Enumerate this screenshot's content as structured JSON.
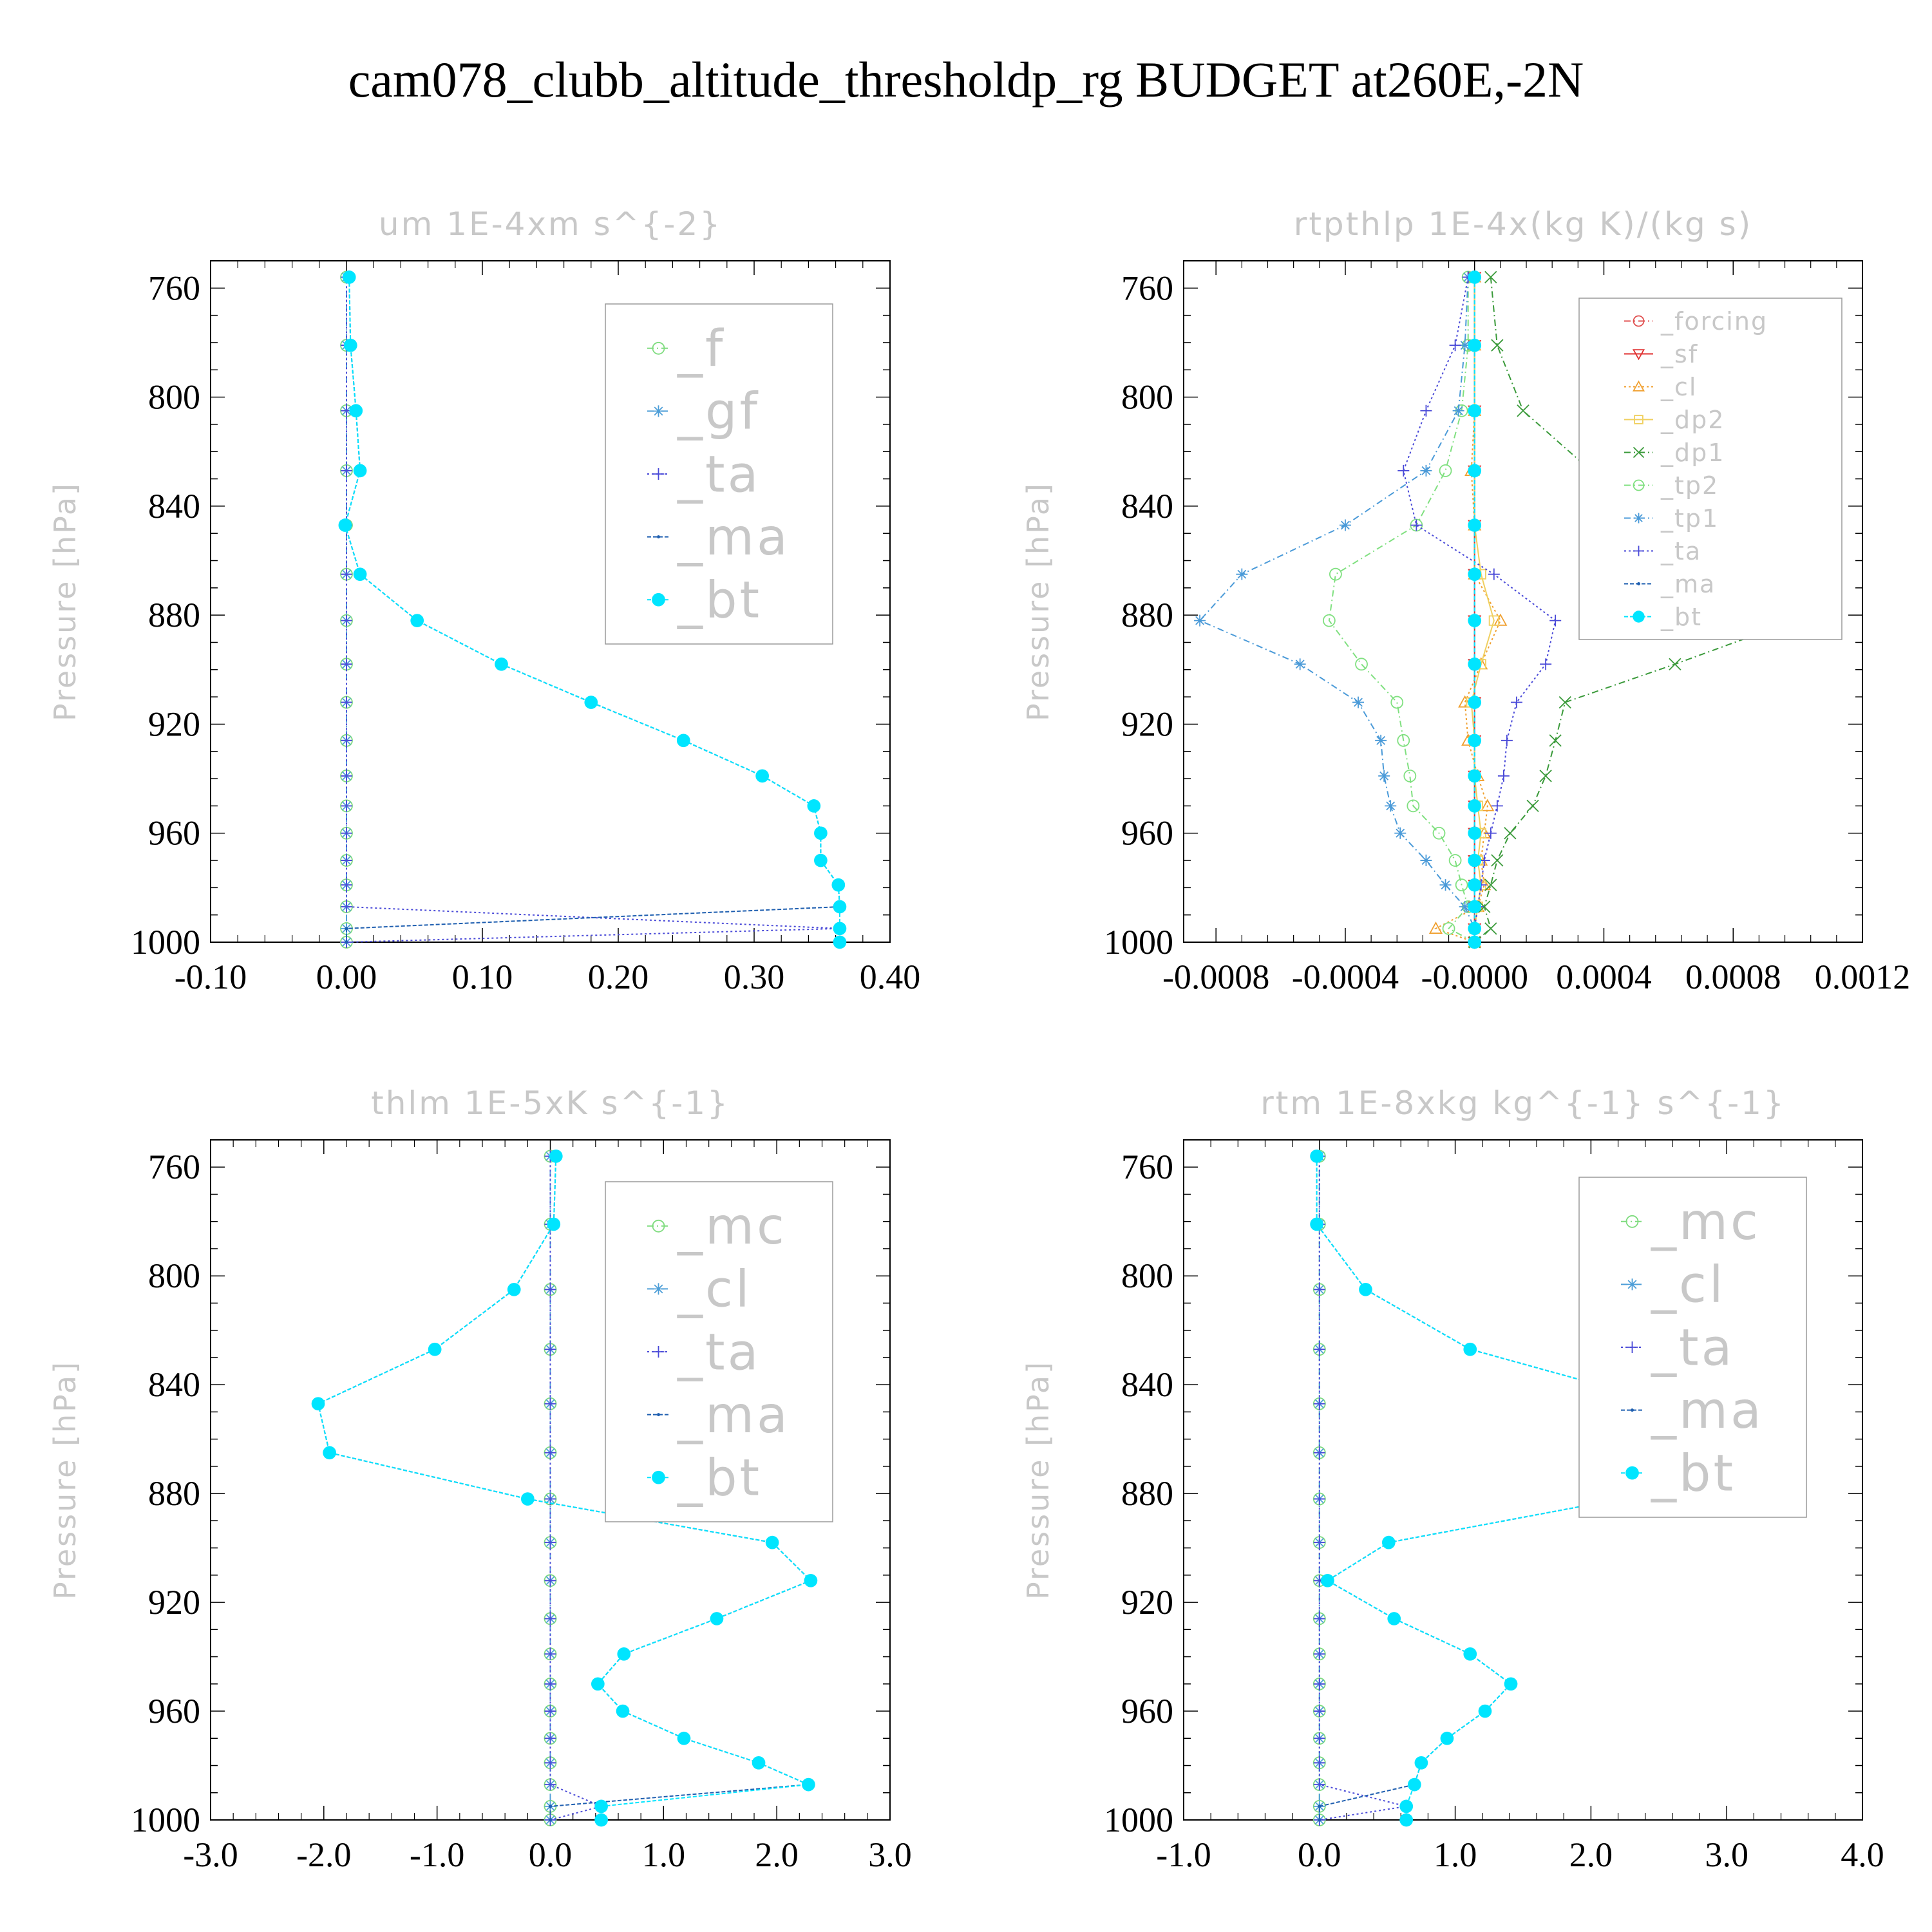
{
  "title": "cam078_clubb_altitude_thresholdp_rg  BUDGET at260E,-2N",
  "colors": {
    "frame": "#000000",
    "faint_text": "#c8c8c8",
    "f": "#7fdc7f",
    "gf": "#4f9fd8",
    "ta": "#4a4ad8",
    "ma": "#1f5fb0",
    "bt": "#00e5ff",
    "forcing": "#e05050",
    "sf": "#e03030",
    "cl_orange": "#f0a030",
    "dp2": "#f0d060",
    "dp1": "#3a9a3a",
    "tp2": "#80e080",
    "tp1": "#4a9ad8",
    "mc": "#7fdc7f",
    "cl_blue": "#4f9fd8"
  },
  "chart_data": [
    {
      "type": "line",
      "panel": "top-left",
      "title": "um  1E-4xm s^{-2}",
      "ylabel": "Pressure [hPa]",
      "ylim": [
        1000,
        750
      ],
      "xlim": [
        -0.1,
        0.4
      ],
      "xticks": [
        -0.1,
        0.0,
        0.1,
        0.2,
        0.3,
        0.4
      ],
      "xtick_labels": [
        "-0.10",
        "0.00",
        "0.10",
        "0.20",
        "0.30",
        "0.40"
      ],
      "yticks": [
        760,
        800,
        840,
        880,
        920,
        960,
        1000
      ],
      "ytick_labels": [
        "760",
        "800",
        "840",
        "880",
        "920",
        "960",
        "1000"
      ],
      "legend": "top-right",
      "levels": [
        756,
        781,
        805,
        827,
        847,
        865,
        882,
        898,
        912,
        926,
        939,
        950,
        960,
        970,
        979,
        987,
        995,
        1000
      ],
      "series": [
        {
          "name": "_f",
          "marker": "circle",
          "color_key": "f",
          "dash": "10,5,2,5",
          "values": [
            0,
            0,
            0,
            0,
            0,
            0,
            0,
            0,
            0,
            0,
            0,
            0,
            0,
            0,
            0,
            0,
            0,
            0
          ]
        },
        {
          "name": "_gf",
          "marker": "star",
          "color_key": "gf",
          "dash": "10,5,2,5",
          "values": [
            0,
            0,
            0,
            0,
            0,
            0,
            0,
            0,
            0,
            0,
            0,
            0,
            0,
            0,
            0,
            0,
            0,
            0
          ]
        },
        {
          "name": "_ta",
          "marker": "plus",
          "color_key": "ta",
          "dash": "3,4",
          "values": [
            0,
            0,
            0,
            0,
            0,
            0,
            0,
            0,
            0,
            0,
            0,
            0,
            0,
            0,
            0,
            0,
            0.363,
            0
          ]
        },
        {
          "name": "_ma",
          "marker": "dot",
          "color_key": "ma",
          "dash": "6,3",
          "values": [
            0.002,
            0.003,
            0.007,
            0.01,
            -0.001,
            0.01,
            0.052,
            0.114,
            0.18,
            0.248,
            0.306,
            0.344,
            0.349,
            0.349,
            0.362,
            0.363,
            0,
            0
          ]
        },
        {
          "name": "_bt",
          "marker": "filled-circle",
          "color_key": "bt",
          "dash": "6,3",
          "values": [
            0.002,
            0.003,
            0.007,
            0.01,
            -0.001,
            0.01,
            0.052,
            0.114,
            0.18,
            0.248,
            0.306,
            0.344,
            0.349,
            0.349,
            0.362,
            0.363,
            0.363,
            0.363
          ]
        }
      ]
    },
    {
      "type": "line",
      "panel": "top-right",
      "title": "rtpthlp  1E-4x(kg K)/(kg s)",
      "ylabel": "Pressure [hPa]",
      "ylim": [
        1000,
        750
      ],
      "xlim": [
        -0.0009,
        0.0012
      ],
      "xticks": [
        -0.0008,
        -0.0004,
        0.0,
        0.0004,
        0.0008,
        0.0012
      ],
      "xtick_labels": [
        "-0.0008",
        "-0.0004",
        "-0.0000",
        "0.0004",
        "0.0008",
        "0.0012"
      ],
      "yticks": [
        760,
        800,
        840,
        880,
        920,
        960,
        1000
      ],
      "ytick_labels": [
        "760",
        "800",
        "840",
        "880",
        "920",
        "960",
        "1000"
      ],
      "legend": "top-right",
      "levels": [
        756,
        781,
        805,
        827,
        847,
        865,
        882,
        898,
        912,
        926,
        939,
        950,
        960,
        970,
        979,
        987,
        995,
        1000
      ],
      "series": [
        {
          "name": "_forcing",
          "marker": "circle",
          "color_key": "forcing",
          "dash": "10,5,2,5",
          "values": [
            0,
            0,
            0,
            0,
            0,
            0,
            0,
            0,
            0,
            0,
            0,
            0,
            0,
            0,
            0,
            0,
            0,
            0
          ]
        },
        {
          "name": "_sf",
          "marker": "triangle-down",
          "color_key": "sf",
          "dash": "none",
          "values": [
            0,
            0,
            0,
            0,
            0,
            0,
            0,
            0,
            0,
            0,
            0,
            0,
            0,
            0,
            0,
            0,
            0,
            0
          ]
        },
        {
          "name": "_cl",
          "marker": "triangle-up",
          "color_key": "cl_orange",
          "dash": "3,4",
          "values": [
            0,
            0,
            0,
            -1e-05,
            0,
            0,
            8e-05,
            2e-05,
            -3e-05,
            -2e-05,
            1e-05,
            4e-05,
            3e-05,
            2e-05,
            3e-05,
            1e-05,
            -0.00012,
            0
          ]
        },
        {
          "name": "_dp2",
          "marker": "square",
          "color_key": "dp2",
          "dash": "none",
          "values": [
            0,
            0,
            0,
            0,
            0,
            2e-05,
            6e-05,
            2e-05,
            -1e-05,
            0,
            0,
            1e-05,
            2e-05,
            1e-05,
            2e-05,
            1e-05,
            0,
            0
          ]
        },
        {
          "name": "_dp1",
          "marker": "x",
          "color_key": "dp1",
          "dash": "10,5,2,5",
          "values": [
            5e-05,
            7e-05,
            0.00015,
            0.00036,
            0.00068,
            0.00102,
            0.00099,
            0.00062,
            0.00028,
            0.00025,
            0.00022,
            0.00018,
            0.00011,
            7e-05,
            5e-05,
            3e-05,
            5e-05,
            0
          ]
        },
        {
          "name": "_tp2",
          "marker": "circle",
          "color_key": "tp2",
          "dash": "10,5,2,5",
          "values": [
            -2e-05,
            -2e-05,
            -4e-05,
            -9e-05,
            -0.00018,
            -0.00043,
            -0.00045,
            -0.00035,
            -0.00024,
            -0.00022,
            -0.0002,
            -0.00019,
            -0.00011,
            -6e-05,
            -4e-05,
            -2e-05,
            -8e-05,
            0
          ]
        },
        {
          "name": "_tp1",
          "marker": "star",
          "color_key": "tp1",
          "dash": "10,5,2,5",
          "values": [
            -2e-05,
            -3e-05,
            -5e-05,
            -0.00015,
            -0.0004,
            -0.00072,
            -0.00085,
            -0.00054,
            -0.00036,
            -0.00029,
            -0.00028,
            -0.00026,
            -0.00023,
            -0.00015,
            -9e-05,
            -3e-05,
            0,
            0
          ]
        },
        {
          "name": "_ta",
          "marker": "plus",
          "color_key": "ta",
          "dash": "3,4",
          "values": [
            -2e-05,
            -6e-05,
            -0.00015,
            -0.00022,
            -0.00018,
            6e-05,
            0.00025,
            0.00022,
            0.00013,
            0.0001,
            9e-05,
            7e-05,
            5e-05,
            3e-05,
            2e-05,
            1e-05,
            0,
            0
          ]
        },
        {
          "name": "_ma",
          "marker": "dot",
          "color_key": "ma",
          "dash": "6,3",
          "values": [
            0,
            0,
            0,
            0,
            0,
            0,
            0,
            0,
            0,
            0,
            0,
            0,
            0,
            0,
            0,
            0,
            0,
            0
          ]
        },
        {
          "name": "_bt",
          "marker": "filled-circle",
          "color_key": "bt",
          "dash": "6,3",
          "values": [
            0,
            0,
            0,
            0,
            0,
            0,
            0,
            0,
            0,
            0,
            0,
            0,
            0,
            0,
            0,
            0,
            0,
            0
          ]
        }
      ]
    },
    {
      "type": "line",
      "panel": "bottom-left",
      "title": "thlm  1E-5xK s^{-1}",
      "ylabel": "Pressure [hPa]",
      "ylim": [
        1000,
        750
      ],
      "xlim": [
        -3.0,
        3.0
      ],
      "xticks": [
        -3.0,
        -2.0,
        -1.0,
        0.0,
        1.0,
        2.0,
        3.0
      ],
      "xtick_labels": [
        "-3.0",
        "-2.0",
        "-1.0",
        "0.0",
        "1.0",
        "2.0",
        "3.0"
      ],
      "yticks": [
        760,
        800,
        840,
        880,
        920,
        960,
        1000
      ],
      "ytick_labels": [
        "760",
        "800",
        "840",
        "880",
        "920",
        "960",
        "1000"
      ],
      "legend": "top-right",
      "levels": [
        756,
        781,
        805,
        827,
        847,
        865,
        882,
        898,
        912,
        926,
        939,
        950,
        960,
        970,
        979,
        987,
        995,
        1000
      ],
      "series": [
        {
          "name": "_mc",
          "marker": "circle",
          "color_key": "mc",
          "dash": "10,5,2,5",
          "values": [
            0,
            0,
            0,
            0,
            0,
            0,
            0,
            0,
            0,
            0,
            0,
            0,
            0,
            0,
            0,
            0,
            0,
            0
          ]
        },
        {
          "name": "_cl",
          "marker": "star",
          "color_key": "cl_blue",
          "dash": "10,5,2,5",
          "values": [
            0,
            0,
            0,
            0,
            0,
            0,
            0,
            0,
            0,
            0,
            0,
            0,
            0,
            0,
            0,
            0,
            0,
            0
          ]
        },
        {
          "name": "_ta",
          "marker": "plus",
          "color_key": "ta",
          "dash": "3,4",
          "values": [
            0,
            0,
            0,
            0,
            0,
            0,
            0,
            0,
            0,
            0,
            0,
            0,
            0,
            0,
            0,
            0,
            0.45,
            0
          ]
        },
        {
          "name": "_ma",
          "marker": "dot",
          "color_key": "ma",
          "dash": "6,3",
          "values": [
            0.05,
            0.03,
            -0.32,
            -1.02,
            -2.05,
            -1.95,
            -0.2,
            1.96,
            2.3,
            1.47,
            0.65,
            0.42,
            0.64,
            1.18,
            1.84,
            2.28,
            0,
            0
          ]
        },
        {
          "name": "_bt",
          "marker": "filled-circle",
          "color_key": "bt",
          "dash": "6,3",
          "values": [
            0.05,
            0.03,
            -0.32,
            -1.02,
            -2.05,
            -1.95,
            -0.2,
            1.96,
            2.3,
            1.47,
            0.65,
            0.42,
            0.64,
            1.18,
            1.84,
            2.28,
            0.45,
            0.45
          ]
        }
      ]
    },
    {
      "type": "line",
      "panel": "bottom-right",
      "title": "rtm  1E-8xkg kg^{-1} s^{-1}",
      "ylabel": "Pressure [hPa]",
      "ylim": [
        1000,
        750
      ],
      "xlim": [
        -1.0,
        4.0
      ],
      "xticks": [
        -1.0,
        0.0,
        1.0,
        2.0,
        3.0,
        4.0
      ],
      "xtick_labels": [
        "-1.0",
        "0.0",
        "1.0",
        "2.0",
        "3.0",
        "4.0"
      ],
      "yticks": [
        760,
        800,
        840,
        880,
        920,
        960,
        1000
      ],
      "ytick_labels": [
        "760",
        "800",
        "840",
        "880",
        "920",
        "960",
        "1000"
      ],
      "legend": "top-right",
      "levels": [
        756,
        781,
        805,
        827,
        847,
        865,
        882,
        898,
        912,
        926,
        939,
        950,
        960,
        970,
        979,
        987,
        995,
        1000
      ],
      "series": [
        {
          "name": "_mc",
          "marker": "circle",
          "color_key": "mc",
          "dash": "10,5,2,5",
          "values": [
            0,
            0,
            0,
            0,
            0,
            0,
            0,
            0,
            0,
            0,
            0,
            0,
            0,
            0,
            0,
            0,
            0,
            0
          ]
        },
        {
          "name": "_cl",
          "marker": "star",
          "color_key": "cl_blue",
          "dash": "10,5,2,5",
          "values": [
            0,
            0,
            0,
            0,
            0,
            0,
            0,
            0,
            0,
            0,
            0,
            0,
            0,
            0,
            0,
            0,
            0,
            0
          ]
        },
        {
          "name": "_ta",
          "marker": "plus",
          "color_key": "ta",
          "dash": "3,4",
          "values": [
            0,
            0,
            0,
            0,
            0,
            0,
            0,
            0,
            0,
            0,
            0,
            0,
            0,
            0,
            0,
            0,
            0.64,
            0
          ]
        },
        {
          "name": "_ma",
          "marker": "dot",
          "color_key": "ma",
          "dash": "6,3",
          "values": [
            -0.02,
            -0.02,
            0.34,
            1.11,
            2.56,
            3.16,
            2.22,
            0.51,
            0.06,
            0.55,
            1.11,
            1.41,
            1.22,
            0.94,
            0.75,
            0.7,
            0,
            0
          ]
        },
        {
          "name": "_bt",
          "marker": "filled-circle",
          "color_key": "bt",
          "dash": "6,3",
          "values": [
            -0.02,
            -0.02,
            0.34,
            1.11,
            2.56,
            3.16,
            2.22,
            0.51,
            0.06,
            0.55,
            1.11,
            1.41,
            1.22,
            0.94,
            0.75,
            0.7,
            0.64,
            0.64
          ]
        }
      ]
    }
  ]
}
